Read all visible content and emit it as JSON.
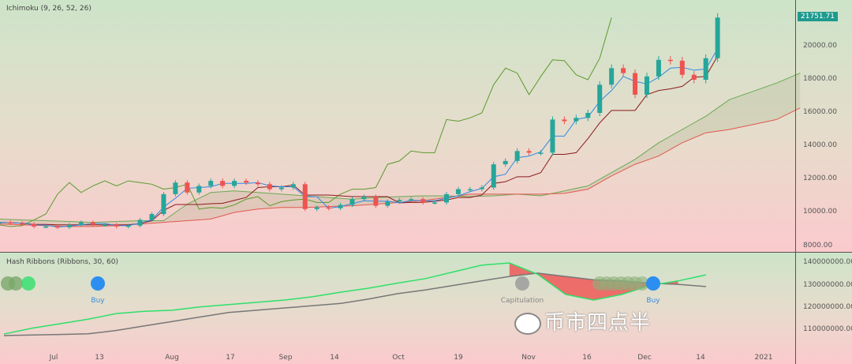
{
  "legend": {
    "indicator": "Ichimoku (9, 26, 52, 26)",
    "hash": "Hash Ribbons (Ribbons, 30, 60)"
  },
  "last_price": "21751.71",
  "price_ticks": [
    "20000.00",
    "18000.00",
    "16000.00",
    "14000.00",
    "12000.00",
    "10000.00",
    "8000.00"
  ],
  "hash_ticks": [
    "140000000.00",
    "130000000.00",
    "120000000.00",
    "110000000.00"
  ],
  "dates": [
    "Jul",
    "13",
    "Aug",
    "17",
    "Sep",
    "14",
    "Oct",
    "19",
    "Nov",
    "16",
    "Dec",
    "14",
    "2021"
  ],
  "markers": {
    "buy1": "Buy",
    "capitulation": "Capitulation",
    "buy2": "Buy"
  },
  "watermark": "币市四点半",
  "colors": {
    "up": "#26a69a",
    "down": "#ef5350",
    "tenkan": "#2f8ae6",
    "kijun": "#8b1a1a",
    "lagging": "#5b9a2e",
    "spanA": "#6aaa55",
    "spanB": "#e0584e",
    "hashFast": "#2ee06a",
    "hashSlow": "#777777",
    "buy": "#2b8ef0"
  },
  "chart_data": {
    "type": "candlestick",
    "day_step": 3,
    "closes": [
      9400,
      9350,
      9300,
      9150,
      9150,
      9100,
      9250,
      9400,
      9250,
      9250,
      9150,
      9200,
      9550,
      9900,
      11100,
      11800,
      11200,
      11600,
      11900,
      11600,
      11900,
      11800,
      11700,
      11400,
      11500,
      11700,
      10200,
      10300,
      10250,
      10450,
      10800,
      10950,
      10400,
      10650,
      10750,
      10800,
      10600,
      10600,
      11100,
      11400,
      11400,
      11500,
      12900,
      13100,
      13700,
      13600,
      13600,
      15600,
      15500,
      15700,
      16000,
      17700,
      18700,
      18400,
      17100,
      18200,
      19200,
      19150,
      18300,
      18000,
      19300,
      21751
    ],
    "cloud_step": 6,
    "spanA": [
      9600,
      9550,
      9500,
      9450,
      9400,
      9450,
      9500,
      9500,
      10500,
      11200,
      11300,
      11200,
      11100,
      11000,
      10900,
      10800,
      10900,
      10950,
      11000,
      11000,
      10950,
      11000,
      11100,
      11000,
      11300,
      11600,
      12400,
      13200,
      14200,
      15000,
      15800,
      16800,
      17300,
      17800,
      18400
    ],
    "spanB": [
      9300,
      9250,
      9200,
      9150,
      9150,
      9200,
      9300,
      9400,
      9500,
      9600,
      10000,
      10200,
      10300,
      10300,
      10350,
      10400,
      10500,
      10600,
      10700,
      10900,
      11100,
      11100,
      11100,
      11100,
      11150,
      11400,
      12200,
      12900,
      13400,
      14200,
      14800,
      15000,
      15300,
      15600,
      16300
    ],
    "hash_step": 15,
    "hash_fast": [
      108.4,
      111,
      113,
      115,
      117.5,
      118.5,
      119,
      120.5,
      121.5,
      122.5,
      123.5,
      125,
      127,
      128.8,
      131,
      133,
      136,
      139,
      140,
      135,
      126,
      123.5,
      126,
      130,
      132,
      134.7
    ],
    "hash_slow": [
      107.7,
      108,
      108.2,
      108.5,
      110,
      112,
      114,
      116,
      118,
      119,
      120,
      121,
      122,
      124,
      126.3,
      128,
      130,
      132,
      134,
      135.5,
      134,
      132.5,
      132,
      131,
      130.5,
      129.5
    ],
    "ylim_price": [
      8000,
      21000
    ],
    "ylim_hash": [
      105,
      142
    ]
  }
}
